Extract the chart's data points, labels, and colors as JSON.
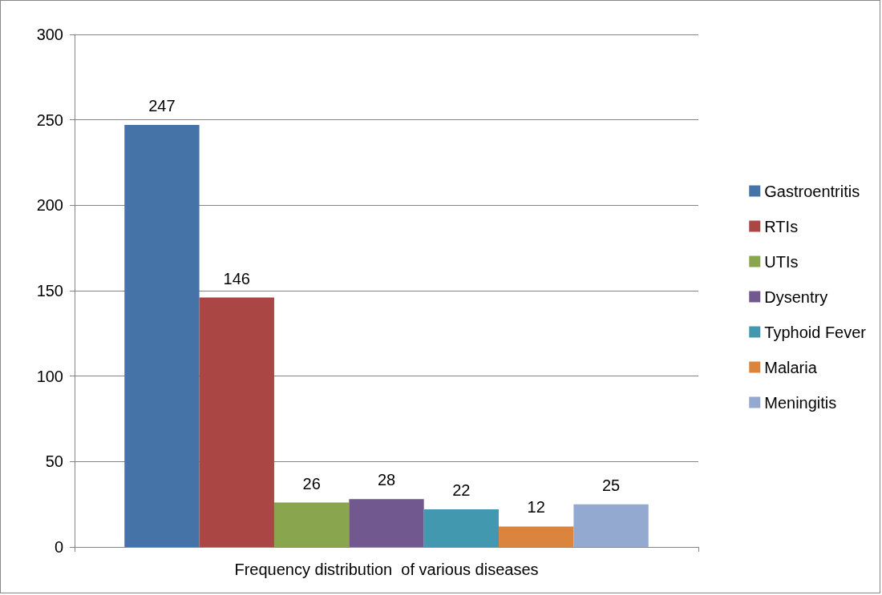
{
  "chart_data": {
    "type": "bar",
    "categories": [
      "Frequency distribution  of various diseases"
    ],
    "series": [
      {
        "name": "Gastroentritis",
        "color": "#4572a7",
        "values": [
          247
        ]
      },
      {
        "name": "RTIs",
        "color": "#aa4643",
        "values": [
          146
        ]
      },
      {
        "name": "UTIs",
        "color": "#89a54e",
        "values": [
          26
        ]
      },
      {
        "name": "Dysentry",
        "color": "#71588f",
        "values": [
          28
        ]
      },
      {
        "name": "Typhoid Fever",
        "color": "#4198af",
        "values": [
          22
        ]
      },
      {
        "name": "Malaria",
        "color": "#db843d",
        "values": [
          12
        ]
      },
      {
        "name": "Meningitis",
        "color": "#93a9cf",
        "values": [
          25
        ]
      }
    ],
    "ylim": [
      0,
      300
    ],
    "yticks": [
      0,
      50,
      100,
      150,
      200,
      250,
      300
    ],
    "grid": "y",
    "legend": "right",
    "data_labels": true
  }
}
